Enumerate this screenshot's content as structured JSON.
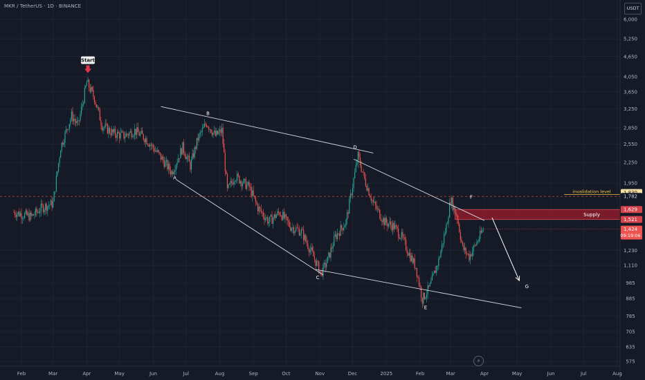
{
  "header": {
    "symbol_line": "MKR / TetherUS · 1D · BINANCE",
    "currency": "USDT"
  },
  "logo_icon": "tradingview-lightning-icon",
  "colors": {
    "background": "#151a26",
    "up": "#26a69a",
    "down": "#ef5350",
    "supply_zone": "#8c1c2b",
    "invalidation_line": "#c84a4a",
    "invalidation_label": "#f5c542",
    "pattern_lines": "#d8dbe2"
  },
  "chart_data": {
    "type": "candlestick",
    "y_scale": "log",
    "ylim": [
      550,
      6700
    ],
    "x_tick_labels": [
      "Feb",
      "Mar",
      "Apr",
      "May",
      "Jun",
      "Jul",
      "Aug",
      "Sep",
      "Oct",
      "Nov",
      "Dec",
      "2025",
      "Feb",
      "Mar",
      "Apr",
      "May",
      "Jun",
      "Jul",
      "Aug"
    ],
    "y_tick_labels": [
      "6,000",
      "5,250",
      "4,650",
      "4,050",
      "3,650",
      "3,250",
      "2,850",
      "2,550",
      "2,250",
      "1,950",
      "1,830",
      "1,782",
      "1,629",
      "1,521",
      "1,424",
      "1,230",
      "1,110",
      "985",
      "885",
      "785",
      "705",
      "635",
      "575"
    ],
    "y_ticks": [
      6000,
      5250,
      4650,
      4050,
      3650,
      3250,
      2850,
      2550,
      2250,
      1950,
      1230,
      1110,
      985,
      885,
      785,
      705,
      635,
      575
    ],
    "price_path": [
      [
        "2024-01-25",
        1600
      ],
      [
        "2024-02-10",
        1550
      ],
      [
        "2024-02-20",
        1650
      ],
      [
        "2024-03-01",
        1700
      ],
      [
        "2024-03-08",
        2500
      ],
      [
        "2024-03-18",
        3100
      ],
      [
        "2024-03-24",
        2900
      ],
      [
        "2024-04-01",
        3900
      ],
      [
        "2024-04-08",
        3500
      ],
      [
        "2024-04-15",
        2900
      ],
      [
        "2024-04-25",
        2750
      ],
      [
        "2024-05-05",
        2700
      ],
      [
        "2024-05-15",
        2800
      ],
      [
        "2024-05-25",
        2650
      ],
      [
        "2024-06-05",
        2400
      ],
      [
        "2024-06-18",
        2100
      ],
      [
        "2024-06-28",
        2500
      ],
      [
        "2024-07-05",
        2200
      ],
      [
        "2024-07-12",
        2650
      ],
      [
        "2024-07-20",
        2950
      ],
      [
        "2024-07-28",
        2700
      ],
      [
        "2024-08-03",
        2800
      ],
      [
        "2024-08-08",
        1850
      ],
      [
        "2024-08-15",
        2050
      ],
      [
        "2024-08-28",
        1900
      ],
      [
        "2024-09-05",
        1650
      ],
      [
        "2024-09-15",
        1500
      ],
      [
        "2024-09-25",
        1600
      ],
      [
        "2024-10-05",
        1450
      ],
      [
        "2024-10-15",
        1400
      ],
      [
        "2024-10-25",
        1200
      ],
      [
        "2024-11-02",
        1050
      ],
      [
        "2024-11-08",
        1150
      ],
      [
        "2024-11-15",
        1350
      ],
      [
        "2024-11-25",
        1500
      ],
      [
        "2024-12-02",
        2000
      ],
      [
        "2024-12-06",
        2350
      ],
      [
        "2024-12-12",
        2000
      ],
      [
        "2024-12-20",
        1700
      ],
      [
        "2024-12-30",
        1500
      ],
      [
        "2025-01-08",
        1450
      ],
      [
        "2025-01-15",
        1350
      ],
      [
        "2025-01-22",
        1200
      ],
      [
        "2025-01-28",
        1100
      ],
      [
        "2025-02-03",
        880
      ],
      [
        "2025-02-10",
        960
      ],
      [
        "2025-02-18",
        1150
      ],
      [
        "2025-02-25",
        1450
      ],
      [
        "2025-03-01",
        1750
      ],
      [
        "2025-03-07",
        1550
      ],
      [
        "2025-03-12",
        1250
      ],
      [
        "2025-03-18",
        1180
      ],
      [
        "2025-03-25",
        1300
      ],
      [
        "2025-03-31",
        1424
      ]
    ],
    "annotations": {
      "start_label": "Start",
      "start_point": [
        "2024-04-02",
        3980
      ],
      "points": [
        {
          "label": "A",
          "date": "2024-06-22",
          "price": 2100
        },
        {
          "label": "B",
          "date": "2024-07-20",
          "price": 3000
        },
        {
          "label": "C",
          "date": "2024-10-30",
          "price": 1070
        },
        {
          "label": "D",
          "date": "2024-12-02",
          "price": 2400
        },
        {
          "label": "E",
          "date": "2025-02-06",
          "price": 870
        },
        {
          "label": "F",
          "date": "2025-03-20",
          "price": 1690
        },
        {
          "label": "G",
          "date": "2025-05-10",
          "price": 950
        }
      ],
      "trend_lines": [
        [
          [
            "2024-06-08",
            3300
          ],
          [
            "2024-12-20",
            2400
          ]
        ],
        [
          [
            "2024-12-02",
            2300
          ],
          [
            "2025-04-01",
            1510
          ]
        ],
        [
          [
            "2024-06-22",
            2000
          ],
          [
            "2024-11-04",
            1040
          ]
        ],
        [
          [
            "2024-10-28",
            1080
          ],
          [
            "2025-05-05",
            830
          ]
        ]
      ],
      "projection_arrow": [
        [
          "2025-04-08",
          1540
        ],
        [
          "2025-05-03",
          1000
        ]
      ],
      "supply_label": "Supply",
      "supply_zone": [
        1521,
        1629
      ],
      "invalidation_label": "invalidation level",
      "invalidation_level": 1782
    },
    "price_labels": [
      {
        "text": "1,830",
        "value": 1830,
        "fill": "#f3e0a2",
        "color": "#222"
      },
      {
        "text": "1,782",
        "value": 1782,
        "fill": "#151a26",
        "color": "#d1d4dc"
      },
      {
        "text": "1,629",
        "value": 1629,
        "fill": "#d7434b",
        "color": "#fff"
      },
      {
        "text": "1,521",
        "value": 1521,
        "fill": "#d7434b",
        "color": "#fff"
      },
      {
        "text": "1,424",
        "value": 1424,
        "fill": "#ef5350",
        "color": "#fff",
        "sub": "09:19:06"
      }
    ],
    "last_price": 1424,
    "countdown": "09:19:06"
  }
}
